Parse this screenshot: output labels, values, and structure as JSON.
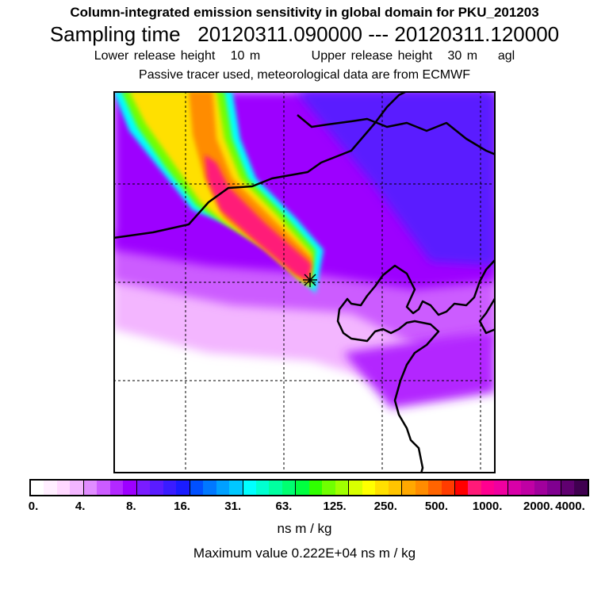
{
  "header": {
    "title": "Column-integrated emission sensitivity in global domain for PKU_201203",
    "sampling": "Sampling time   20120311.090000 --- 20120311.120000",
    "release": "Lower release height   10 m          Upper release height   30 m    agl",
    "tracer": "Passive tracer used, meteorological data are from ECMWF"
  },
  "map": {
    "features": [
      "emission-sensitivity-field",
      "coastlines",
      "lat-lon-gridlines",
      "release-site-marker"
    ]
  },
  "colorbar": {
    "tick_labels": [
      "0.",
      "4.",
      "8.",
      "16.",
      "31.",
      "63.",
      "125.",
      "250.",
      "500.",
      "1000.",
      "2000.",
      "4000."
    ],
    "colors": [
      "#ffffff",
      "#ffeeff",
      "#ffd8ff",
      "#f3b6ff",
      "#e08cff",
      "#cc5cff",
      "#b328ff",
      "#9d00ff",
      "#7a1cff",
      "#5a1cff",
      "#3a1cff",
      "#1a1cff",
      "#0050ff",
      "#0078ff",
      "#00a0ff",
      "#00c8ff",
      "#00ffff",
      "#00ffd0",
      "#00ffa0",
      "#00ff70",
      "#00ff40",
      "#30ff00",
      "#70ff00",
      "#a0ff00",
      "#d8ff00",
      "#ffff00",
      "#ffe000",
      "#ffc400",
      "#ffa800",
      "#ff8c00",
      "#ff6400",
      "#ff3c00",
      "#ff0000",
      "#ff1a78",
      "#ff0090",
      "#f000a0",
      "#d800a8",
      "#c000a4",
      "#a0009c",
      "#800090",
      "#600070",
      "#400050"
    ],
    "unit": "ns m / kg",
    "max_value_text": "Maximum value  0.222E+04 ns m / kg"
  }
}
